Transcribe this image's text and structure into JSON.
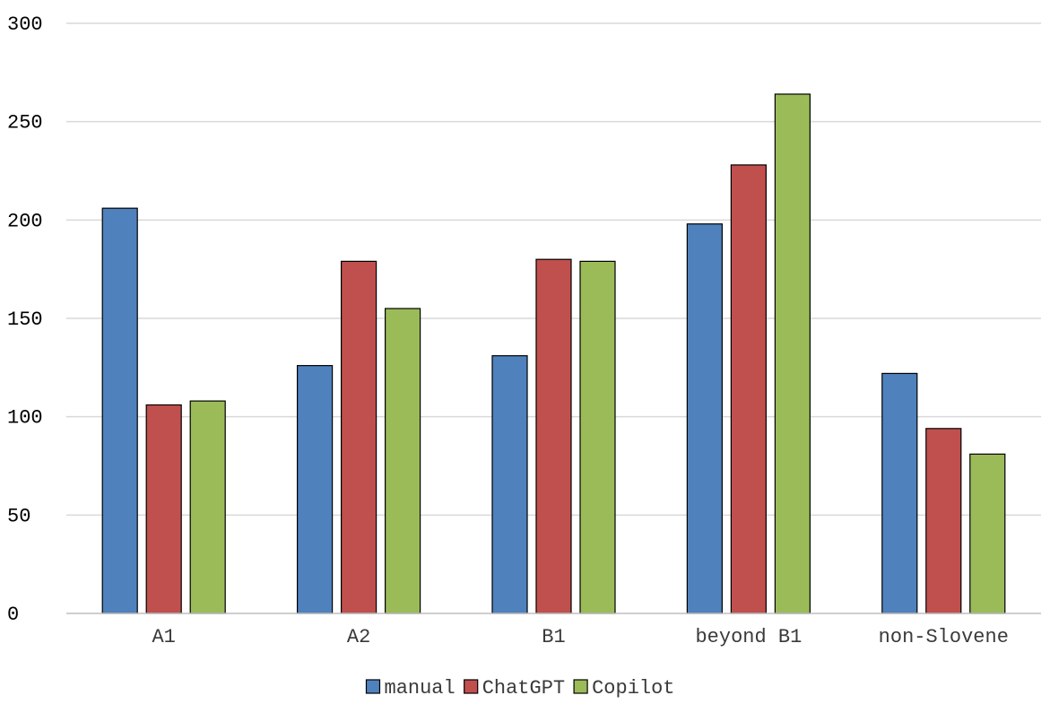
{
  "chart_data": {
    "type": "bar",
    "title": "",
    "xlabel": "",
    "ylabel": "",
    "categories": [
      "A1",
      "A2",
      "B1",
      "beyond B1",
      "non-Slovene"
    ],
    "series": [
      {
        "name": "manual",
        "color": "#4f81bd",
        "values": [
          206,
          126,
          131,
          198,
          122
        ]
      },
      {
        "name": "ChatGPT",
        "color": "#c0504d",
        "values": [
          106,
          179,
          180,
          228,
          94
        ]
      },
      {
        "name": "Copilot",
        "color": "#9bbb59",
        "values": [
          108,
          155,
          179,
          264,
          81
        ]
      }
    ],
    "ylim": [
      0,
      300
    ],
    "yticks": [
      0,
      50,
      100,
      150,
      200,
      250,
      300
    ],
    "grid": true,
    "legend_position": "bottom"
  }
}
